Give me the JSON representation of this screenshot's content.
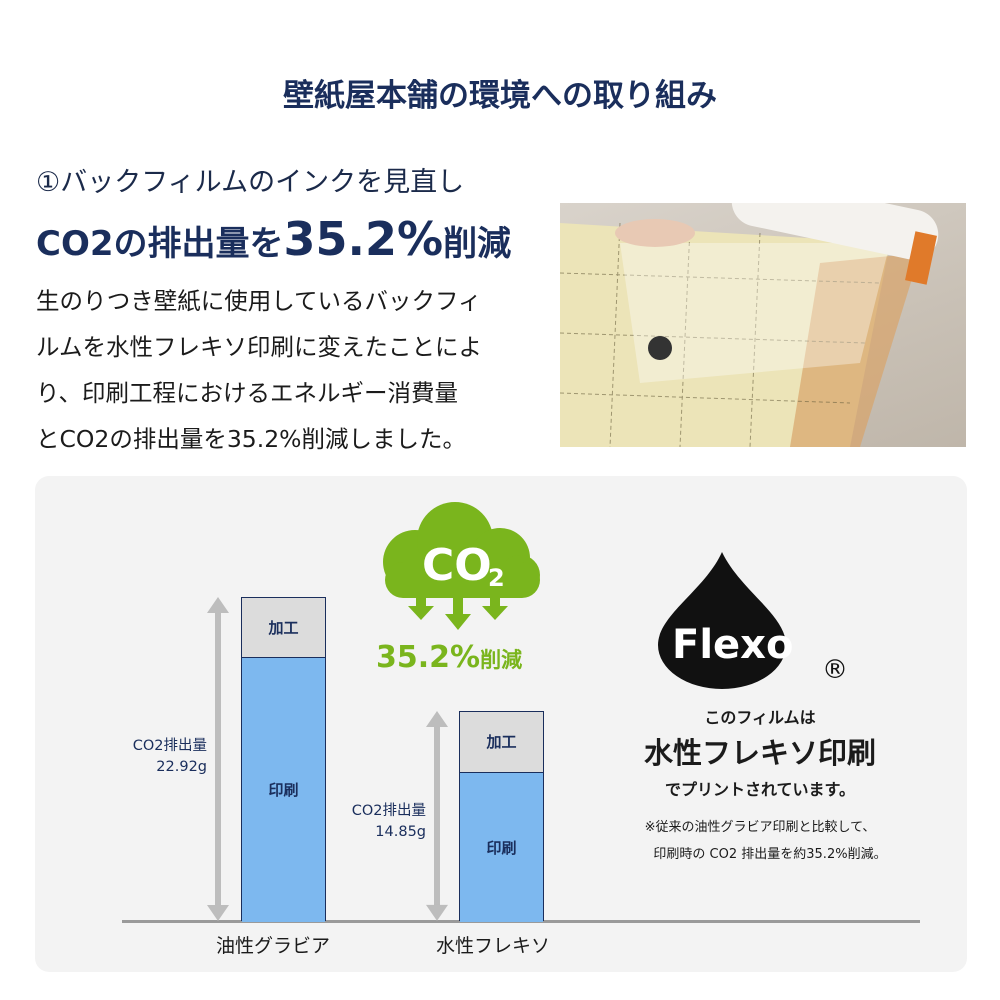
{
  "title": "壁紙屋本舗の環境への取り組み",
  "section": {
    "subtitle": "①バックフィルムのインクを見直し",
    "headline_pre": "CO2の排出量を",
    "headline_num": "35.2%",
    "headline_post": "削減",
    "body_lines": [
      "生のりつき壁紙に使用しているバックフィ",
      "ルムを水性フレキソ印刷に変えたことによ",
      "り、印刷工程におけるエネルギー消費量",
      "とCO2の排出量を35.2%削減しました。"
    ]
  },
  "badge": {
    "cloud_text": "CO",
    "cloud_sub": "2",
    "reduction_num": "35.2%",
    "reduction_text": "削減",
    "color": "#7ab51d"
  },
  "flexo": {
    "logo": "Flexo",
    "registered": "®",
    "line1": "このフィルムは",
    "line2": "水性フレキソ印刷",
    "line3": "でプリントされています。",
    "note1": "※従来の油性グラビア印刷と比較して、",
    "note2": "印刷時の CO2 排出量を約35.2%削減。"
  },
  "chart_data": {
    "type": "bar",
    "stacked": true,
    "categories": [
      "油性グラビア",
      "水性フレキソ"
    ],
    "series": [
      {
        "name": "印刷",
        "values": [
          18.7,
          10.55
        ],
        "color": "#7db8ef"
      },
      {
        "name": "加工",
        "values": [
          4.22,
          4.3
        ],
        "color": "#dcdcdc"
      }
    ],
    "totals": [
      22.92,
      14.85
    ],
    "total_labels": [
      {
        "label": "CO2排出量",
        "value": "22.92g"
      },
      {
        "label": "CO2排出量",
        "value": "14.85g"
      }
    ],
    "ylim": [
      0,
      22.92
    ],
    "grid": false
  }
}
